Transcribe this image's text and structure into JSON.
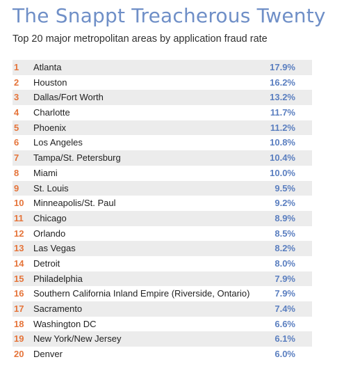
{
  "header": {
    "title": "The Snappt Treacherous Twenty",
    "subtitle": "Top 20 major metropolitan areas by application fraud rate"
  },
  "colors": {
    "title": "#6f8fc7",
    "rank": "#e5743a",
    "rate": "#5b7fc0",
    "row_shade": "#ececec"
  },
  "chart_data": {
    "type": "table",
    "title": "The Snappt Treacherous Twenty",
    "subtitle": "Top 20 major metropolitan areas by application fraud rate",
    "rows": [
      {
        "rank": "1",
        "name": "Atlanta",
        "rate": "17.9%",
        "value": 17.9
      },
      {
        "rank": "2",
        "name": "Houston",
        "rate": "16.2%",
        "value": 16.2
      },
      {
        "rank": "3",
        "name": "Dallas/Fort Worth",
        "rate": "13.2%",
        "value": 13.2
      },
      {
        "rank": "4",
        "name": "Charlotte",
        "rate": "11.7%",
        "value": 11.7
      },
      {
        "rank": "5",
        "name": "Phoenix",
        "rate": "11.2%",
        "value": 11.2
      },
      {
        "rank": "6",
        "name": "Los Angeles",
        "rate": "10.8%",
        "value": 10.8
      },
      {
        "rank": "7",
        "name": "Tampa/St. Petersburg",
        "rate": "10.4%",
        "value": 10.4
      },
      {
        "rank": "8",
        "name": "Miami",
        "rate": "10.0%",
        "value": 10.0
      },
      {
        "rank": "9",
        "name": "St. Louis",
        "rate": "9.5%",
        "value": 9.5
      },
      {
        "rank": "10",
        "name": "Minneapolis/St. Paul",
        "rate": "9.2%",
        "value": 9.2
      },
      {
        "rank": "11",
        "name": "Chicago",
        "rate": "8.9%",
        "value": 8.9
      },
      {
        "rank": "12",
        "name": "Orlando",
        "rate": "8.5%",
        "value": 8.5
      },
      {
        "rank": "13",
        "name": "Las Vegas",
        "rate": "8.2%",
        "value": 8.2
      },
      {
        "rank": "14",
        "name": "Detroit",
        "rate": "8.0%",
        "value": 8.0
      },
      {
        "rank": "15",
        "name": "Philadelphia",
        "rate": "7.9%",
        "value": 7.9
      },
      {
        "rank": "16",
        "name": "Southern California Inland Empire (Riverside, Ontario)",
        "rate": "7.9%",
        "value": 7.9
      },
      {
        "rank": "17",
        "name": "Sacramento",
        "rate": "7.4%",
        "value": 7.4
      },
      {
        "rank": "18",
        "name": "Washington DC",
        "rate": "6.6%",
        "value": 6.6
      },
      {
        "rank": "19",
        "name": "New York/New Jersey",
        "rate": "6.1%",
        "value": 6.1
      },
      {
        "rank": "20",
        "name": "Denver",
        "rate": "6.0%",
        "value": 6.0
      }
    ]
  }
}
